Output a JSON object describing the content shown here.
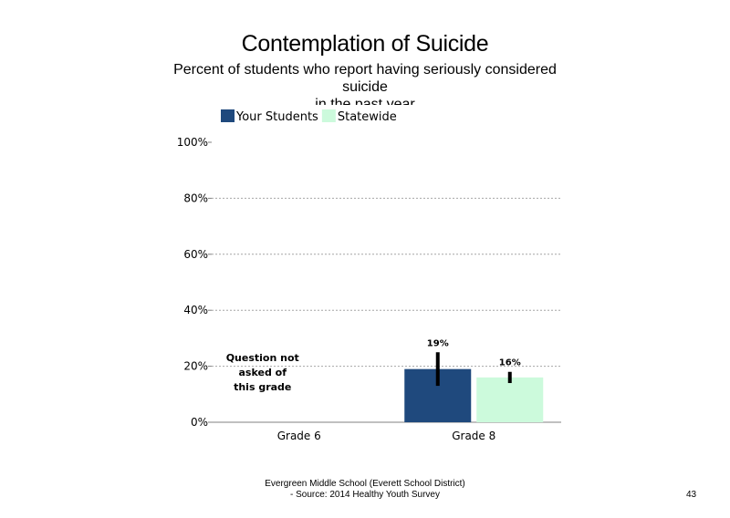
{
  "title": "Contemplation of Suicide",
  "subtitle_lines": [
    "Percent of students who report having seriously considered",
    "suicide",
    "in the past year"
  ],
  "footer": {
    "line1": "Evergreen Middle School (Everett School District)",
    "line2": "- Source: 2014 Healthy Youth Survey"
  },
  "page_number": "43",
  "chart_data": {
    "type": "bar",
    "categories": [
      "Grade 6",
      "Grade 8"
    ],
    "series": [
      {
        "name": "Your Students",
        "color": "#1f497d",
        "values": [
          null,
          19
        ],
        "labels": [
          "",
          "19%"
        ],
        "error_low": [
          null,
          13
        ],
        "error_high": [
          null,
          25
        ]
      },
      {
        "name": "Statewide",
        "color": "#ccfadc",
        "values": [
          null,
          16
        ],
        "labels": [
          "",
          "16%"
        ],
        "error_low": [
          null,
          14
        ],
        "error_high": [
          null,
          18
        ]
      }
    ],
    "ylim": [
      0,
      100
    ],
    "yticks": [
      0,
      20,
      40,
      60,
      80,
      100
    ],
    "ytick_labels": [
      "0%",
      "20%",
      "40%",
      "60%",
      "80%",
      "100%"
    ],
    "grid": true,
    "legend_position": "top-left",
    "annotations": [
      {
        "category": "Grade 6",
        "lines": [
          "Question not",
          "asked of",
          "this grade"
        ]
      }
    ]
  }
}
